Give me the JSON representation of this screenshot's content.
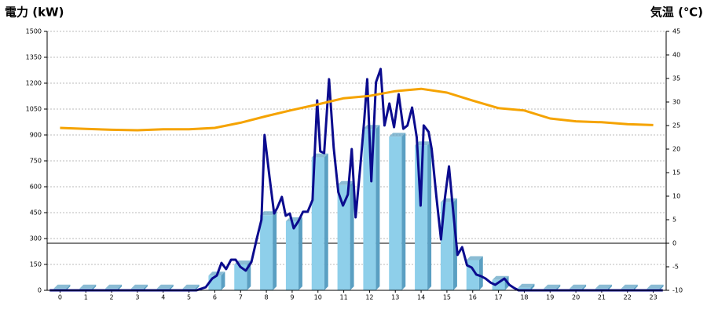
{
  "chart_data": {
    "type": "combo",
    "title_left": "電力 (kW)",
    "title_right": "気温 (℃)",
    "title_left_color": "#1a6fb5",
    "title_right_color": "#f08c00",
    "x": [
      0,
      1,
      2,
      3,
      4,
      5,
      6,
      7,
      8,
      9,
      10,
      11,
      12,
      13,
      14,
      15,
      16,
      17,
      18,
      19,
      20,
      21,
      22,
      23
    ],
    "xlim": [
      -0.5,
      23.5
    ],
    "ylim": [
      0,
      1500
    ],
    "yticks": [
      0,
      150,
      300,
      450,
      600,
      750,
      900,
      1050,
      1200,
      1350,
      1500
    ],
    "y2lim": [
      -10,
      45
    ],
    "y2ticks": [
      -10,
      -5,
      0,
      5,
      10,
      15,
      20,
      25,
      30,
      35,
      40,
      45
    ],
    "grid": true,
    "y2_zero_line": true,
    "series": [
      {
        "type": "bar",
        "color": "#8ecfea",
        "side_color": "#5a9fc2",
        "values": [
          10,
          10,
          10,
          10,
          10,
          10,
          85,
          150,
          435,
          400,
          770,
          610,
          935,
          890,
          840,
          510,
          175,
          60,
          15,
          10,
          10,
          10,
          10,
          10
        ]
      },
      {
        "type": "line",
        "color": "#0b0b8e",
        "x": [
          -0.4,
          5.29,
          5.65,
          5.9,
          6.08,
          6.26,
          6.44,
          6.63,
          6.81,
          6.99,
          7.2,
          7.42,
          7.63,
          7.81,
          7.93,
          8.12,
          8.3,
          8.42,
          8.6,
          8.75,
          8.91,
          9.06,
          9.24,
          9.42,
          9.6,
          9.79,
          9.97,
          10.09,
          10.24,
          10.43,
          10.61,
          10.79,
          10.97,
          11.16,
          11.31,
          11.46,
          11.64,
          11.79,
          11.91,
          12.07,
          12.25,
          12.43,
          12.58,
          12.77,
          12.95,
          13.13,
          13.31,
          13.47,
          13.65,
          13.83,
          13.98,
          14.1,
          14.29,
          14.41,
          14.59,
          14.77,
          14.92,
          15.08,
          15.23,
          15.41,
          15.59,
          15.78,
          15.96,
          16.14,
          16.32,
          16.5,
          16.69,
          16.87,
          17.05,
          17.23,
          17.42,
          17.6,
          17.78,
          23.37
        ],
        "values": [
          0,
          0,
          18,
          68,
          86,
          159,
          123,
          177,
          177,
          136,
          114,
          164,
          300,
          409,
          900,
          659,
          445,
          477,
          541,
          432,
          445,
          359,
          400,
          455,
          455,
          523,
          1100,
          805,
          795,
          1223,
          827,
          568,
          491,
          555,
          818,
          423,
          714,
          977,
          1223,
          632,
          1205,
          1282,
          955,
          1082,
          945,
          1136,
          936,
          955,
          1059,
          886,
          491,
          955,
          918,
          818,
          545,
          295,
          532,
          718,
          477,
          205,
          250,
          145,
          132,
          91,
          82,
          68,
          45,
          32,
          50,
          68,
          32,
          14,
          0,
          0
        ]
      },
      {
        "type": "line",
        "axis": "y2",
        "color": "#f5a300",
        "values": [
          24.5,
          24.3,
          24.1,
          24.0,
          24.2,
          24.2,
          24.5,
          25.6,
          27.0,
          28.3,
          29.5,
          30.8,
          31.3,
          32.3,
          32.8,
          32.0,
          30.3,
          28.7,
          28.2,
          26.5,
          25.9,
          25.7,
          25.3,
          25.1
        ]
      }
    ]
  }
}
